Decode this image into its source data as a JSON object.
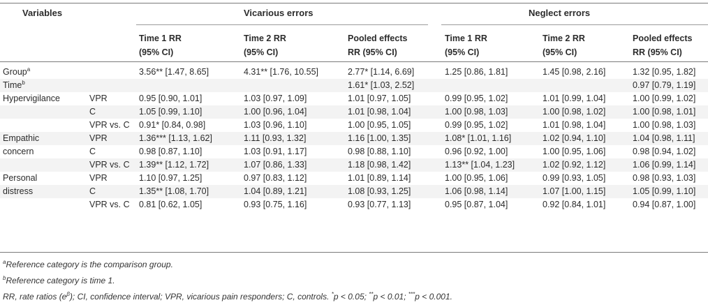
{
  "table": {
    "headers": {
      "variables": "Variables",
      "vicarious": "Vicarious errors",
      "neglect": "Neglect errors",
      "sub": [
        [
          "Time 1 RR",
          "(95% CI)"
        ],
        [
          "Time 2 RR",
          "(95% CI)"
        ],
        [
          "Pooled effects",
          "RR (95% CI)"
        ],
        [
          "Time 1 RR",
          "(95% CI)"
        ],
        [
          "Time 2 RR",
          "(95% CI)"
        ],
        [
          "Pooled effects",
          "RR (95% CI)"
        ]
      ]
    },
    "rows": [
      {
        "label": "Group",
        "label_sup": "a",
        "sub": "",
        "cells": [
          "3.56** [1.47, 8.65]",
          "4.31** [1.76, 10.55]",
          "2.77* [1.14, 6.69]",
          "1.25 [0.86, 1.81]",
          "1.45 [0.98, 2.16]",
          "1.32 [0.95, 1.82]"
        ]
      },
      {
        "label": "Time",
        "label_sup": "b",
        "sub": "",
        "cells": [
          "",
          "",
          "1.61* [1.03, 2.52]",
          "",
          "",
          "0.97 [0.79, 1.19]"
        ]
      },
      {
        "label": "Hypervigilance",
        "label_sup": "",
        "sub": "VPR",
        "cells": [
          "0.95 [0.90, 1.01]",
          "1.03 [0.97, 1.09]",
          "1.01 [0.97, 1.05]",
          "0.99 [0.95, 1.02]",
          "1.01 [0.99, 1.04]",
          "1.00 [0.99, 1.02]"
        ]
      },
      {
        "label": "",
        "label_sup": "",
        "sub": "C",
        "cells": [
          "1.05 [0.99, 1.10]",
          "1.00 [0.96, 1.04]",
          "1.01 [0.98, 1.04]",
          "1.00 [0.98, 1.03]",
          "1.00 [0.98, 1.02]",
          "1.00 [0.98, 1.01]"
        ]
      },
      {
        "label": "",
        "label_sup": "",
        "sub": "VPR vs. C",
        "cells": [
          "0.91* [0.84, 0.98]",
          "1.03 [0.96, 1.10]",
          "1.00 [0.95, 1.05]",
          "0.99 [0.95, 1.02]",
          "1.01 [0.98, 1.04]",
          "1.00 [0.98, 1.03]"
        ]
      },
      {
        "label": "Empathic",
        "label_sup": "",
        "sub": "VPR",
        "cells": [
          "1.36*** [1.13, 1.62]",
          "1.11 [0.93, 1.32]",
          "1.16 [1.00, 1.35]",
          "1.08* [1.01, 1.16]",
          "1.02 [0.94, 1.10]",
          "1.04 [0.98, 1.11]"
        ]
      },
      {
        "label": "concern",
        "label_sup": "",
        "sub": "C",
        "cells": [
          "0.98 [0.87, 1.10]",
          "1.03 [0.91, 1.17]",
          "0.98 [0.88, 1.10]",
          "0.96 [0.92, 1.00]",
          "1.00 [0.95, 1.06]",
          "0.98 [0.94, 1.02]"
        ]
      },
      {
        "label": "",
        "label_sup": "",
        "sub": "VPR vs. C",
        "cells": [
          "1.39** [1.12, 1.72]",
          "1.07 [0.86, 1.33]",
          "1.18 [0.98, 1.42]",
          "1.13** [1.04, 1.23]",
          "1.02 [0.92, 1.12]",
          "1.06 [0.99, 1.14]"
        ]
      },
      {
        "label": "Personal",
        "label_sup": "",
        "sub": "VPR",
        "cells": [
          "1.10 [0.97, 1.25]",
          "0.97 [0.83, 1.12]",
          "1.01 [0.89, 1.14]",
          "1.00 [0.95, 1.06]",
          "0.99 [0.93, 1.05]",
          "0.98 [0.93, 1.03]"
        ]
      },
      {
        "label": "distress",
        "label_sup": "",
        "sub": "C",
        "cells": [
          "1.35** [1.08, 1.70]",
          "1.04 [0.89, 1.21]",
          "1.08 [0.93, 1.25]",
          "1.06 [0.98, 1.14]",
          "1.07 [1.00, 1.15]",
          "1.05 [0.99, 1.10]"
        ]
      },
      {
        "label": "",
        "label_sup": "",
        "sub": "VPR vs. C",
        "cells": [
          "0.81 [0.62, 1.05]",
          "0.93 [0.75, 1.16]",
          "0.93 [0.77, 1.13]",
          "0.95 [0.87, 1.04]",
          "0.92 [0.84, 1.01]",
          "0.94 [0.87, 1.00]"
        ]
      }
    ]
  },
  "footnotes": {
    "a_mark": "a",
    "a_text": "Reference category is the comparison group.",
    "b_mark": "b",
    "b_text": "Reference category is time 1.",
    "abbrev_1": "RR, rate ratios (e",
    "abbrev_beta": "β",
    "abbrev_2": "); CI, confidence interval; VPR, vicarious pain responders; C, controls. ",
    "sig_1": "*",
    "sig_1_text": "p < 0.05; ",
    "sig_2": "**",
    "sig_2_text": "p < 0.01; ",
    "sig_3": "***",
    "sig_3_text": "p < 0.001."
  }
}
